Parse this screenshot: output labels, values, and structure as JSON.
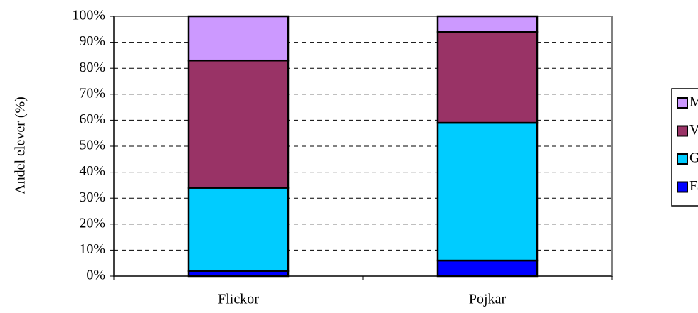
{
  "chart_data": {
    "type": "stacked_bar",
    "y_label": "Andel elever (%)",
    "categories": [
      "Flickor",
      "Pojkar"
    ],
    "series": [
      {
        "name": "EUM",
        "color": "#0000ff",
        "values": [
          2,
          6
        ]
      },
      {
        "name": "G",
        "color": "#00ccff",
        "values": [
          32,
          53
        ]
      },
      {
        "name": "VG",
        "color": "#993366",
        "values": [
          49,
          35
        ]
      },
      {
        "name": "MVG",
        "color": "#cc99ff",
        "values": [
          17,
          6
        ]
      }
    ],
    "ylim": [
      0,
      100
    ],
    "yticks": [
      {
        "value": 0,
        "label": "0%"
      },
      {
        "value": 10,
        "label": "10%"
      },
      {
        "value": 20,
        "label": "20%"
      },
      {
        "value": 30,
        "label": "30%"
      },
      {
        "value": 40,
        "label": "40%"
      },
      {
        "value": 50,
        "label": "50%"
      },
      {
        "value": 60,
        "label": "60%"
      },
      {
        "value": 70,
        "label": "70%"
      },
      {
        "value": 80,
        "label": "80%"
      },
      {
        "value": 90,
        "label": "90%"
      },
      {
        "value": 100,
        "label": "100%"
      }
    ],
    "grid": true,
    "legend": "right"
  }
}
